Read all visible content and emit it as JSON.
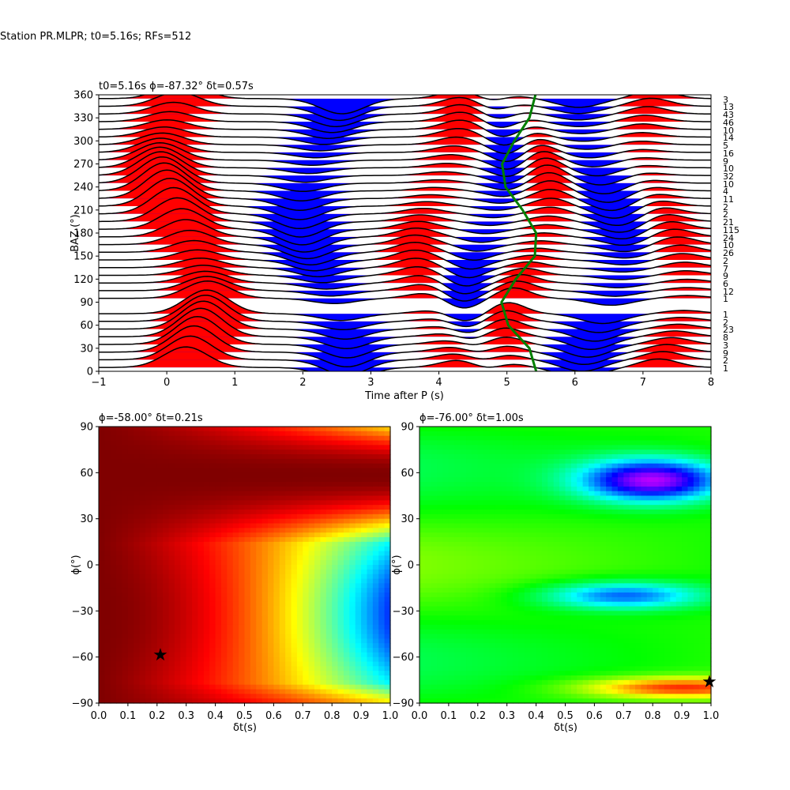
{
  "figure_title": "Station PR.MLPR; t0=5.16s; RFs=512",
  "colors": {
    "positive_fill": "#ff0000",
    "negative_fill": "#0000ff",
    "trace_line": "#000000",
    "moveout_curve": "#008000"
  },
  "chart_data": [
    {
      "type": "line",
      "title": "t0=5.16s ϕ=-87.32° δt=0.57s",
      "xlabel": "Time after P (s)",
      "ylabel": "BAZ (°)",
      "xlim": [
        -1,
        8
      ],
      "ylim": [
        0,
        360
      ],
      "xticks": [
        "−1",
        "0",
        "1",
        "2",
        "3",
        "4",
        "5",
        "6",
        "7",
        "8"
      ],
      "yticks": [
        "0",
        "30",
        "60",
        "90",
        "120",
        "150",
        "180",
        "210",
        "240",
        "270",
        "300",
        "330",
        "360"
      ],
      "trace_baz": [
        5,
        15,
        25,
        35,
        45,
        55,
        65,
        75,
        95,
        105,
        115,
        125,
        135,
        145,
        155,
        165,
        175,
        185,
        195,
        205,
        215,
        225,
        235,
        245,
        255,
        265,
        275,
        285,
        295,
        305,
        315,
        325,
        335,
        345,
        355
      ],
      "trace_counts": [
        "1",
        "2",
        "9",
        "3",
        "8",
        "23",
        "2",
        "1",
        "1",
        "12",
        "6",
        "9",
        "7",
        "2",
        "26",
        "10",
        "24",
        "115",
        "21",
        "2",
        "2",
        "11",
        "4",
        "10",
        "32",
        "10",
        "9",
        "16",
        "5",
        "14",
        "10",
        "46",
        "43",
        "13",
        "3"
      ],
      "moveout_curve": {
        "name": "",
        "baz": [
          0,
          30,
          60,
          90,
          120,
          150,
          180,
          210,
          240,
          270,
          300,
          330,
          360
        ],
        "time": [
          5.43,
          5.33,
          5.02,
          4.92,
          5.13,
          5.41,
          5.43,
          5.23,
          4.98,
          4.93,
          5.11,
          5.33,
          5.42
        ]
      }
    },
    {
      "type": "heatmap",
      "title": "ϕ=-58.00° δt=0.21s",
      "xlabel": "δt(s)",
      "ylabel": "ϕ(°)",
      "xlim": [
        0,
        1
      ],
      "ylim": [
        -90,
        90
      ],
      "xticks": [
        "0.0",
        "0.1",
        "0.2",
        "0.3",
        "0.4",
        "0.5",
        "0.6",
        "0.7",
        "0.8",
        "0.9",
        "1.0"
      ],
      "yticks": [
        "−90",
        "−60",
        "−30",
        "0",
        "30",
        "60",
        "90"
      ],
      "colormap": "jet-like, dark red = maximum",
      "best": {
        "dt": 0.21,
        "phi": -58
      }
    },
    {
      "type": "heatmap",
      "title": "ϕ=-76.00° δt=1.00s",
      "xlabel": "δt(s)",
      "ylabel": "ϕ(°)",
      "xlim": [
        0,
        1
      ],
      "ylim": [
        -90,
        90
      ],
      "xticks": [
        "0.0",
        "0.1",
        "0.2",
        "0.3",
        "0.4",
        "0.5",
        "0.6",
        "0.7",
        "0.8",
        "0.9",
        "1.0"
      ],
      "yticks": [
        "−90",
        "−60",
        "−30",
        "0",
        "30",
        "60",
        "90"
      ],
      "colormap": "hsv-like, red = maximum",
      "best": {
        "dt": 1.0,
        "phi": -76
      }
    }
  ]
}
